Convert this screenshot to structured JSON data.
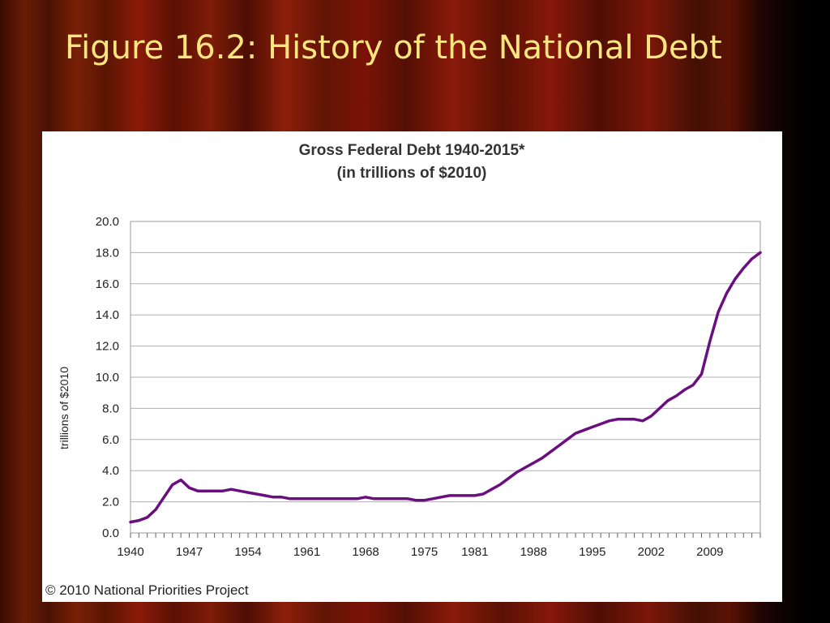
{
  "slide": {
    "title": "Figure 16.2: History of the National Debt"
  },
  "credit": "© 2010 National Priorities Project",
  "colors": {
    "line": "#6a0f80",
    "grid": "#b0b0b0",
    "title_text": "#ffe680"
  },
  "chart_data": {
    "type": "line",
    "title": "Gross Federal Debt 1940-2015*",
    "subtitle": "(in trillions of $2010)",
    "xlabel": "",
    "ylabel": "trillions of $2010",
    "xlim": [
      1940,
      2015
    ],
    "ylim": [
      0,
      20
    ],
    "y_ticks": [
      "0.0",
      "2.0",
      "4.0",
      "6.0",
      "8.0",
      "10.0",
      "12.0",
      "14.0",
      "16.0",
      "18.0",
      "20.0"
    ],
    "x_ticks": [
      "1940",
      "1947",
      "1954",
      "1961",
      "1968",
      "1975",
      "1981",
      "1988",
      "1995",
      "2002",
      "2009"
    ],
    "grid": "horizontal",
    "series": [
      {
        "x": [
          1940,
          1941,
          1942,
          1943,
          1944,
          1945,
          1946,
          1947,
          1948,
          1949,
          1950,
          1951,
          1952,
          1953,
          1954,
          1955,
          1956,
          1957,
          1958,
          1959,
          1960,
          1961,
          1962,
          1963,
          1964,
          1965,
          1966,
          1967,
          1968,
          1969,
          1970,
          1971,
          1972,
          1973,
          1974,
          1975,
          1976,
          1977,
          1978,
          1979,
          1980,
          1981,
          1982,
          1983,
          1984,
          1985,
          1986,
          1987,
          1988,
          1989,
          1990,
          1991,
          1992,
          1993,
          1994,
          1995,
          1996,
          1997,
          1998,
          1999,
          2000,
          2001,
          2002,
          2003,
          2004,
          2005,
          2006,
          2007,
          2008,
          2009,
          2010,
          2011,
          2012,
          2013,
          2014,
          2015
        ],
        "y": [
          0.7,
          0.8,
          1.0,
          1.5,
          2.3,
          3.1,
          3.4,
          2.9,
          2.7,
          2.7,
          2.7,
          2.7,
          2.8,
          2.7,
          2.6,
          2.5,
          2.4,
          2.3,
          2.3,
          2.2,
          2.2,
          2.2,
          2.2,
          2.2,
          2.2,
          2.2,
          2.2,
          2.2,
          2.3,
          2.2,
          2.2,
          2.2,
          2.2,
          2.2,
          2.1,
          2.1,
          2.2,
          2.3,
          2.4,
          2.4,
          2.4,
          2.4,
          2.5,
          2.8,
          3.1,
          3.5,
          3.9,
          4.2,
          4.5,
          4.8,
          5.2,
          5.6,
          6.0,
          6.4,
          6.6,
          6.8,
          7.0,
          7.2,
          7.3,
          7.3,
          7.3,
          7.2,
          7.5,
          8.0,
          8.5,
          8.8,
          9.2,
          9.5,
          10.2,
          12.3,
          14.2,
          15.4,
          16.3,
          17.0,
          17.6,
          18.0
        ]
      }
    ]
  }
}
